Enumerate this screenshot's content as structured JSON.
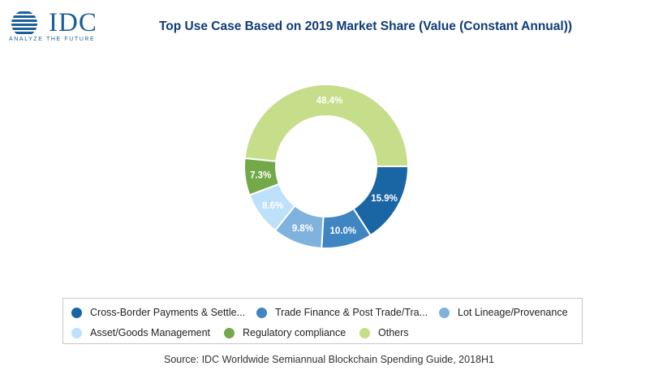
{
  "logo": {
    "text": "IDC",
    "tagline": "ANALYZE THE FUTURE",
    "color": "#1b5e9a"
  },
  "chart_data": {
    "type": "pie",
    "donut": true,
    "title": "Top Use Case Based on 2019 Market Share (Value (Constant Annual))",
    "source": "Source: IDC Worldwide Semiannual Blockchain Spending Guide, 2018H1",
    "legend_position": "bottom",
    "categories": [
      "Cross-Border Payments & Settle...",
      "Trade Finance & Post Trade/Tra...",
      "Lot Lineage/Provenance",
      "Asset/Goods Management",
      "Regulatory compliance",
      "Others"
    ],
    "values": [
      15.9,
      10.0,
      9.8,
      8.6,
      7.3,
      48.4
    ],
    "labels": [
      "15.9%",
      "10.0%",
      "9.8%",
      "8.6%",
      "7.3%",
      "48.4%"
    ],
    "colors": [
      "#1a65a4",
      "#3f85c2",
      "#7fb2dd",
      "#bde0fb",
      "#74a94a",
      "#c6dd8a"
    ]
  }
}
